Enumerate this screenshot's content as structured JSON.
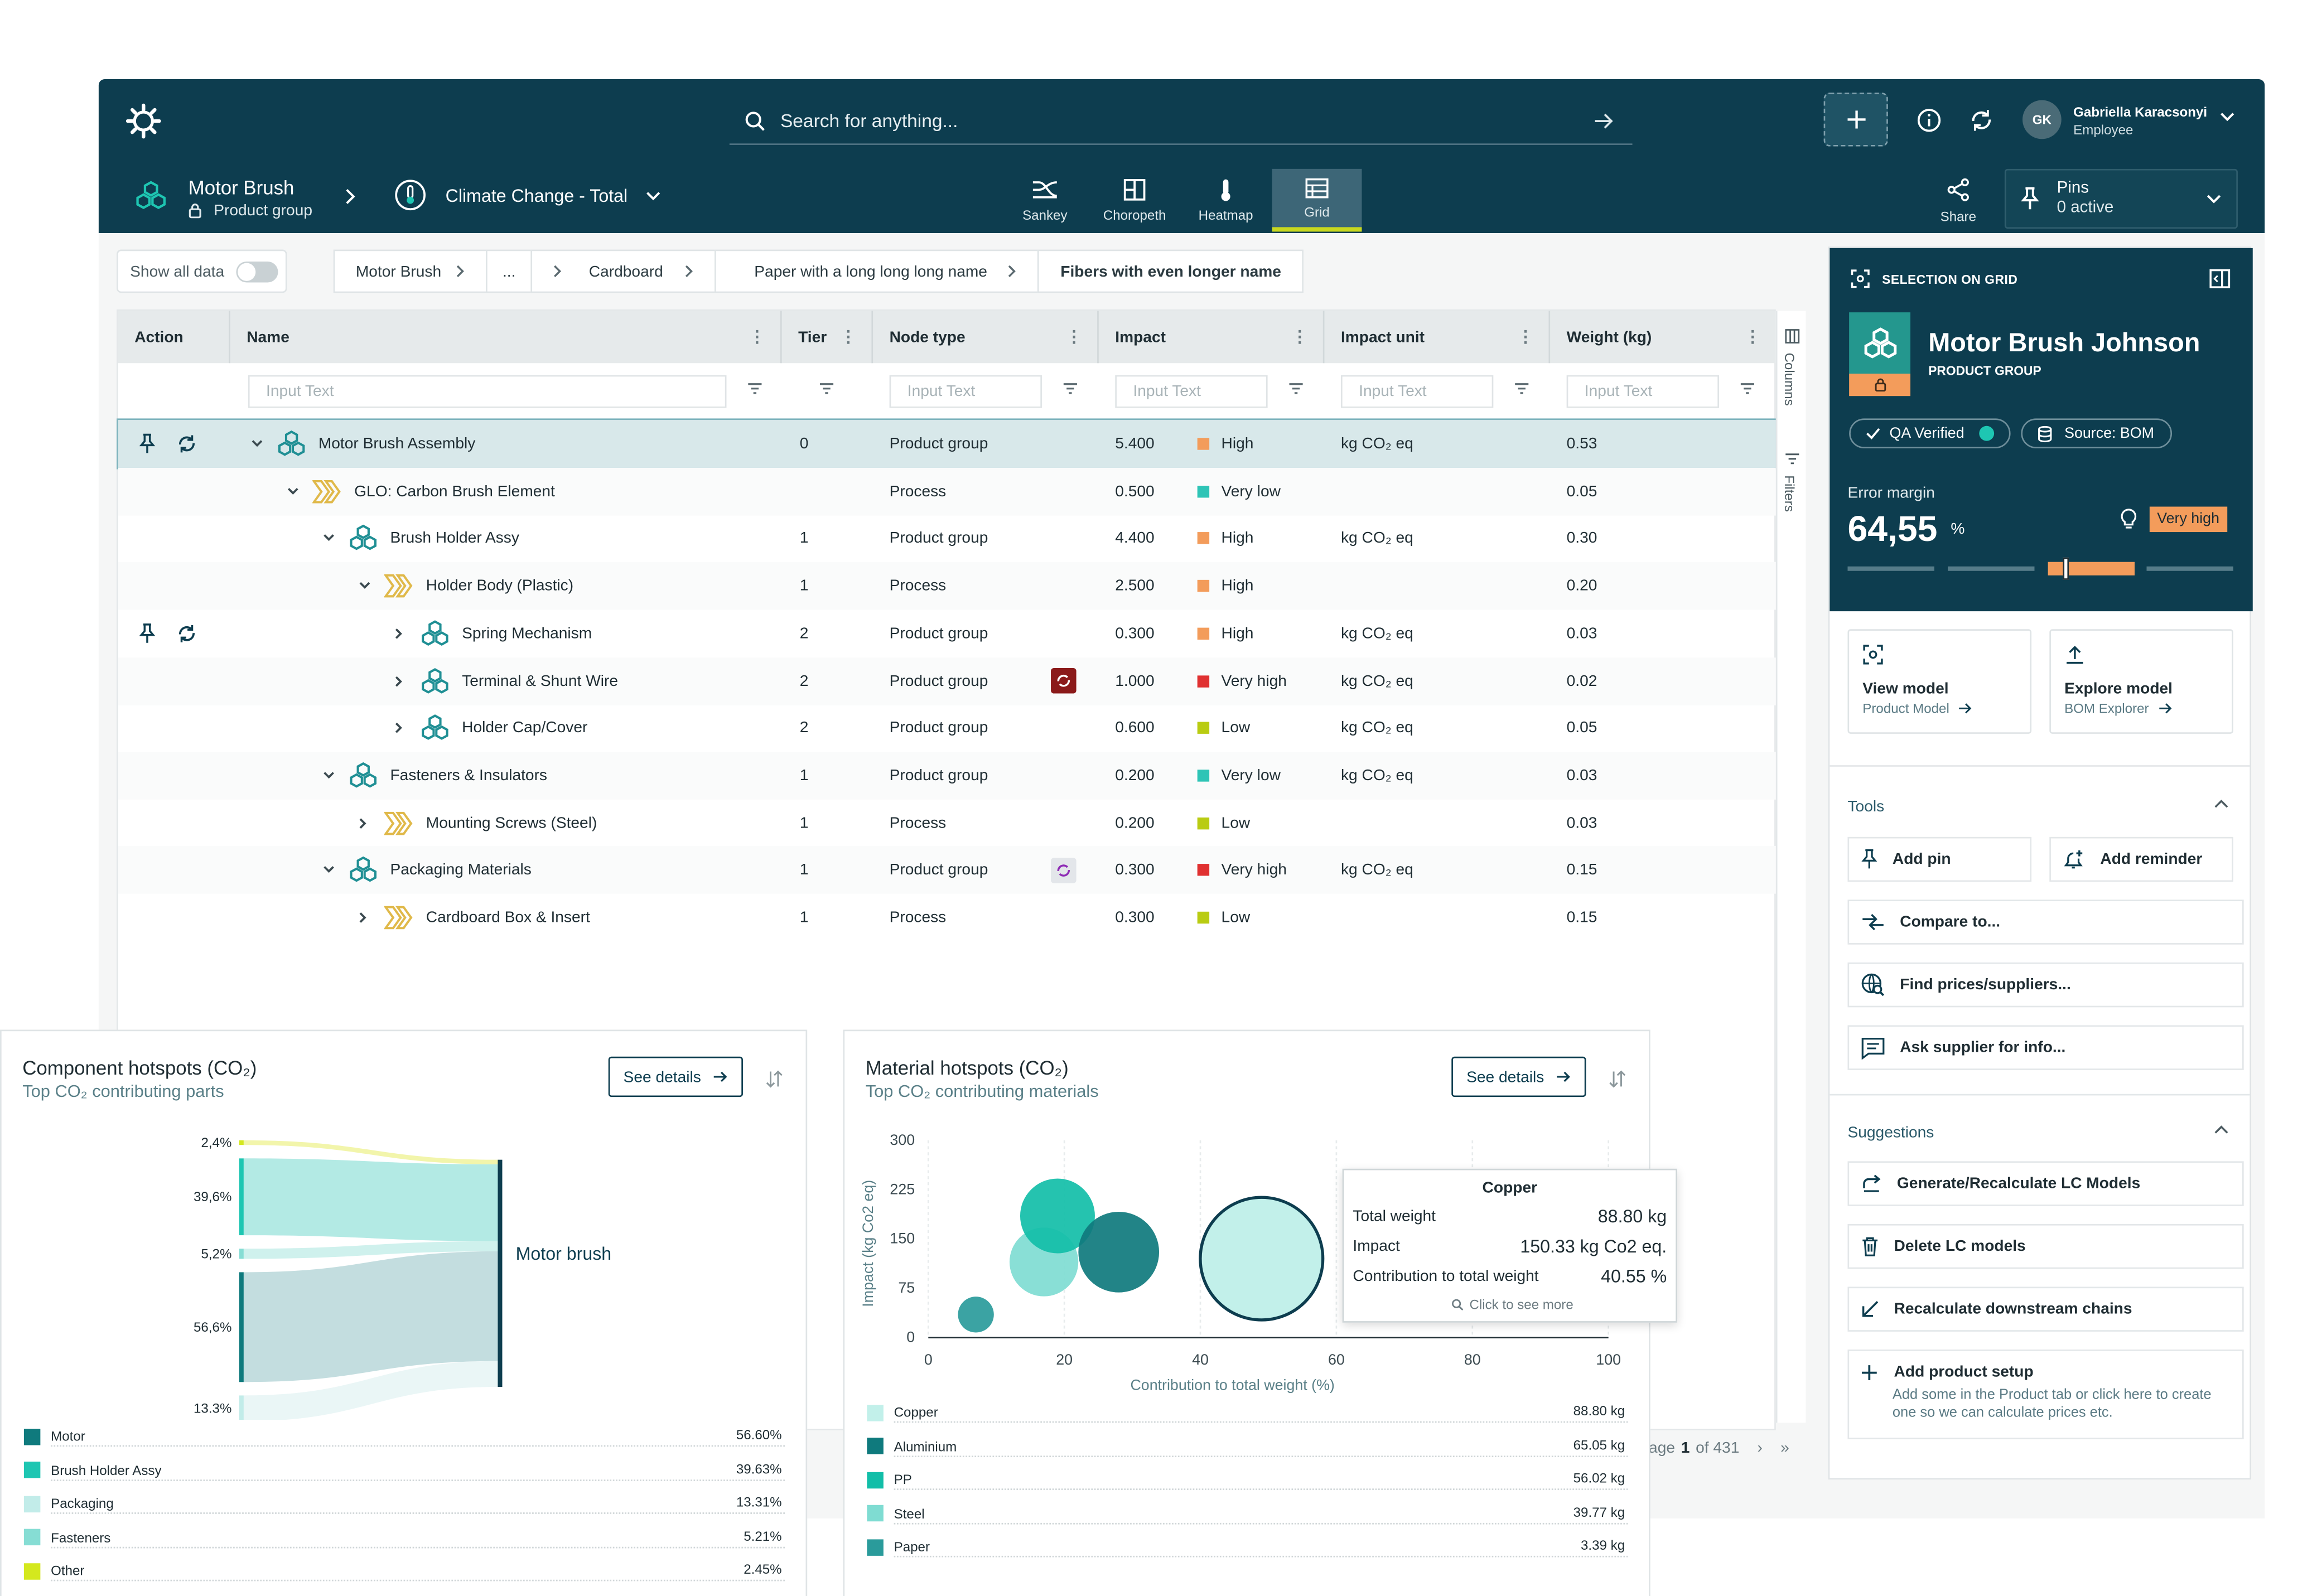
{
  "app": {
    "search_placeholder": "Search for anything...",
    "user_initials": "GK",
    "user_name": "Gabriella Karacsonyi",
    "user_role": "Employee"
  },
  "context": {
    "node_title": "Motor Brush",
    "node_subtitle": "Product group",
    "impact_category": "Climate Change - Total"
  },
  "view_tabs": [
    {
      "label": "Sankey",
      "icon": "sankey-icon",
      "active": false
    },
    {
      "label": "Choropeth",
      "icon": "choropleth-icon",
      "active": false
    },
    {
      "label": "Heatmap",
      "icon": "thermometer-icon",
      "active": false
    },
    {
      "label": "Grid",
      "icon": "grid-icon",
      "active": true
    }
  ],
  "share_label": "Share",
  "pins": {
    "label": "Pins",
    "status": "0 active"
  },
  "show_all_data": "Show all data",
  "breadcrumbs": [
    "Motor Brush",
    "...",
    "Cardboard",
    "Paper with a long long long name",
    "Fibers with even longer name"
  ],
  "table": {
    "columns": [
      "Action",
      "Name",
      "Tier",
      "Node type",
      "Impact",
      "Impact unit",
      "Weight (kg)"
    ],
    "filter_placeholder": "Input Text",
    "rows": [
      {
        "name": "Motor Brush Assembly",
        "tier": "0",
        "type": "Product group",
        "impact": "5.400",
        "level": "High",
        "level_color": "#f39c5b",
        "unit": "kg CO₂ eq",
        "weight": "0.53"
      },
      {
        "name": "GLO: Carbon Brush Element",
        "tier": "",
        "type": "Process",
        "impact": "0.500",
        "level": "Very low",
        "level_color": "#2ec4b6",
        "unit": "",
        "weight": "0.05"
      },
      {
        "name": "Brush Holder Assy",
        "tier": "1",
        "type": "Product group",
        "impact": "4.400",
        "level": "High",
        "level_color": "#f39c5b",
        "unit": "kg CO₂ eq",
        "weight": "0.30"
      },
      {
        "name": "Holder Body (Plastic)",
        "tier": "1",
        "type": "Process",
        "impact": "2.500",
        "level": "High",
        "level_color": "#f39c5b",
        "unit": "",
        "weight": "0.20"
      },
      {
        "name": "Spring Mechanism",
        "tier": "2",
        "type": "Product group",
        "impact": "0.300",
        "level": "High",
        "level_color": "#f39c5b",
        "unit": "kg CO₂ eq",
        "weight": "0.03"
      },
      {
        "name": "Terminal & Shunt Wire",
        "tier": "2",
        "type": "Product group",
        "impact": "1.000",
        "level": "Very high",
        "level_color": "#e03131",
        "unit": "kg CO₂ eq",
        "weight": "0.02"
      },
      {
        "name": "Holder Cap/Cover",
        "tier": "2",
        "type": "Product group",
        "impact": "0.600",
        "level": "Low",
        "level_color": "#b9cc12",
        "unit": "kg CO₂ eq",
        "weight": "0.05"
      },
      {
        "name": "Fasteners & Insulators",
        "tier": "1",
        "type": "Product group",
        "impact": "0.200",
        "level": "Very low",
        "level_color": "#2ec4b6",
        "unit": "kg CO₂ eq",
        "weight": "0.03"
      },
      {
        "name": "Mounting Screws (Steel)",
        "tier": "1",
        "type": "Process",
        "impact": "0.200",
        "level": "Low",
        "level_color": "#b9cc12",
        "unit": "",
        "weight": "0.03"
      },
      {
        "name": "Packaging Materials",
        "tier": "1",
        "type": "Product group",
        "impact": "0.300",
        "level": "Very high",
        "level_color": "#e03131",
        "unit": "kg CO₂ eq",
        "weight": "0.15"
      },
      {
        "name": "Cardboard Box & Insert",
        "tier": "1",
        "type": "Process",
        "impact": "0.300",
        "level": "Low",
        "level_color": "#b9cc12",
        "unit": "",
        "weight": "0.15"
      }
    ]
  },
  "side_tabs": {
    "columns": "Columns",
    "filters": "Filters"
  },
  "pagination": {
    "text": "age",
    "page": "1",
    "of": "of 431"
  },
  "selection": {
    "header": "SELECTION ON GRID",
    "title": "Motor Brush Johnson",
    "subtitle": "PRODUCT GROUP",
    "qa": "QA Verified",
    "source": "Source: BOM",
    "error_label": "Error margin",
    "error_value": "64,55",
    "error_unit": "%",
    "error_badge": "Very high",
    "slider_level": 0.6
  },
  "actions": [
    {
      "title": "View model",
      "sub": "Product Model"
    },
    {
      "title": "Explore model",
      "sub": "BOM Explorer"
    }
  ],
  "tools": {
    "header": "Tools",
    "items": [
      "Add pin",
      "Add reminder",
      "Compare to...",
      "Find prices/suppliers...",
      "Ask supplier for info..."
    ]
  },
  "suggestions": {
    "header": "Suggestions",
    "items": [
      "Generate/Recalculate LC Models",
      "Delete LC models",
      "Recalculate downstream chains",
      "Add product setup"
    ],
    "setup_desc": "Add some in the Product tab or click here to create one so we can calculate prices etc."
  },
  "component_card": {
    "title": "Component hotspots (CO₂)",
    "subtitle": "Top CO₂ contributing parts",
    "see_details": "See details",
    "target": "Motor brush",
    "legend": [
      {
        "name": "Motor",
        "value": "56.60%",
        "color": "#0f7a7d"
      },
      {
        "name": "Brush Holder Assy",
        "value": "39.63%",
        "color": "#1ec6b2"
      },
      {
        "name": "Packaging",
        "value": "13.31%",
        "color": "#c2ece9"
      },
      {
        "name": "Fasteners",
        "value": "5.21%",
        "color": "#86ddd4"
      },
      {
        "name": "Other",
        "value": "2.45%",
        "color": "#d4e81e"
      }
    ]
  },
  "chart_data": [
    {
      "type": "sankey",
      "nodes": [
        "2,4%",
        "39,6%",
        "5,2%",
        "56,6%",
        "13.3%",
        "Motor brush"
      ],
      "values": [
        2.4,
        39.6,
        5.2,
        56.6,
        13.3
      ],
      "colors": [
        "#f0f39c",
        "#a6e6df",
        "#c7eeea",
        "#b9d7d9",
        "#e6f4f5"
      ]
    },
    {
      "type": "scatter",
      "title": "Material hotspots (CO₂)",
      "subtitle": "Top CO₂ contributing materials",
      "xlabel": "Contribution to total weight (%)",
      "ylabel": "Impact (kg Co2 eq)",
      "xlim": [
        0,
        100
      ],
      "ylim": [
        0,
        300
      ],
      "xticks": [
        "0",
        "20",
        "40",
        "60",
        "80",
        "100"
      ],
      "yticks": [
        "0",
        "75",
        "150",
        "225",
        "300"
      ],
      "points": [
        {
          "x": 7,
          "y": 35,
          "r": 12,
          "color": "#2a9b9b"
        },
        {
          "x": 17,
          "y": 115,
          "r": 23,
          "color": "#7fdcd2"
        },
        {
          "x": 19,
          "y": 185,
          "r": 25,
          "color": "#12bea8"
        },
        {
          "x": 28,
          "y": 130,
          "r": 27,
          "color": "#0f7a7d"
        },
        {
          "x": 49,
          "y": 120,
          "r": 41,
          "color": "#c2f0ea"
        }
      ],
      "tooltip": {
        "title": "Copper",
        "rows": [
          {
            "label": "Total weight",
            "value": "88.80 kg"
          },
          {
            "label": "Impact",
            "value": "150.33 kg Co2 eq."
          },
          {
            "label": "Contribution to total weight",
            "value": "40.55 %"
          }
        ],
        "link": "Click to see more"
      },
      "legend": [
        {
          "name": "Copper",
          "value": "88.80 kg",
          "color": "#c2f0ea"
        },
        {
          "name": "Aluminium",
          "value": "65.05 kg",
          "color": "#0f7a7d"
        },
        {
          "name": "PP",
          "value": "56.02 kg",
          "color": "#12bea8"
        },
        {
          "name": "Steel",
          "value": "39.77 kg",
          "color": "#7fdcd2"
        },
        {
          "name": "Paper",
          "value": "3.39 kg",
          "color": "#2a9b9b"
        }
      ]
    }
  ]
}
